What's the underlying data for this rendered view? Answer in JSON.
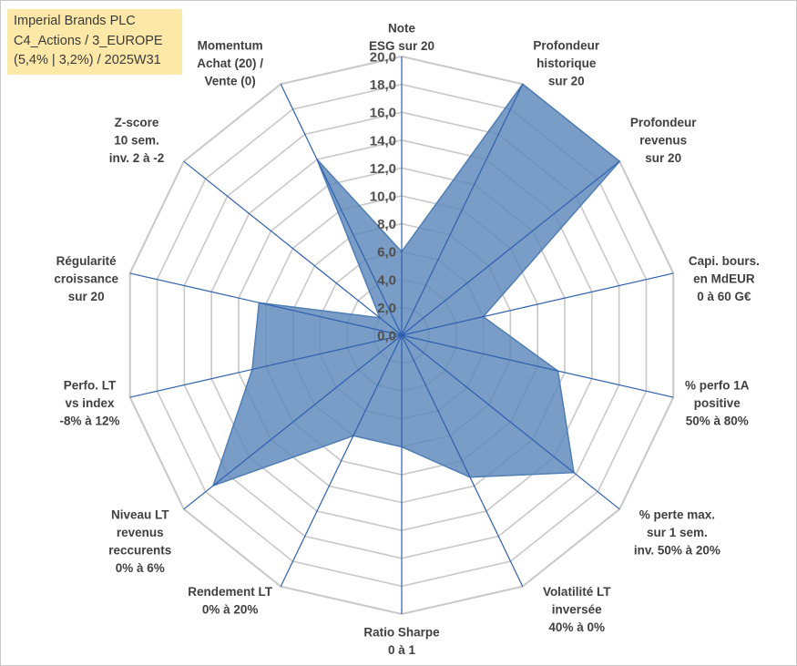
{
  "title_box": {
    "line1": "Imperial Brands PLC",
    "line2": "C4_Actions / 3_EUROPE",
    "line3": "(5,4% | 3,2%) / 2025W31"
  },
  "colors": {
    "fill": "#5b87b9",
    "stroke": "#4f7eb5",
    "spoke": "#2f5fb0",
    "ring": "#c8c8c8",
    "background_box": "#fde8a8"
  },
  "chart_data": {
    "type": "radar",
    "title": "",
    "range": [
      0,
      20
    ],
    "ticks": [
      "0,0",
      "2,0",
      "4,0",
      "6,0",
      "8,0",
      "10,0",
      "12,0",
      "14,0",
      "16,0",
      "18,0",
      "20,0"
    ],
    "axes": [
      {
        "label": [
          "Note",
          "ESG sur 20"
        ]
      },
      {
        "label": [
          "Profondeur",
          "historique",
          "sur 20"
        ]
      },
      {
        "label": [
          "Profondeur",
          "revenus",
          "sur 20"
        ]
      },
      {
        "label": [
          "Capi. bours.",
          "en MdEUR",
          "0 à 60 G€"
        ]
      },
      {
        "label": [
          "% perfo 1A",
          "positive",
          "50% à 80%"
        ]
      },
      {
        "label": [
          "% perte max.",
          "sur 1 sem.",
          "inv. 50% à 20%"
        ]
      },
      {
        "label": [
          "Volatilité LT",
          "inversée",
          "40% à 0%"
        ]
      },
      {
        "label": [
          "Ratio Sharpe",
          "0 à 1"
        ]
      },
      {
        "label": [
          "Rendement LT",
          "0% à 20%"
        ]
      },
      {
        "label": [
          "Niveau LT",
          "revenus",
          "reccurents",
          "0% à 6%"
        ]
      },
      {
        "label": [
          "Perfo. LT",
          "vs index",
          "-8% à 12%"
        ]
      },
      {
        "label": [
          "Régularité",
          "croissance",
          "sur 20"
        ]
      },
      {
        "label": [
          "Z-score",
          "10 sem.",
          "inv. 2 à -2"
        ]
      },
      {
        "label": [
          "Momentum",
          "Achat (20) /",
          "Vente (0)"
        ]
      }
    ],
    "series": [
      {
        "values": [
          6.0,
          20.0,
          20.0,
          6.0,
          11.5,
          15.8,
          11.3,
          8.0,
          8.0,
          17.3,
          11.0,
          10.5,
          2.0,
          14.0
        ]
      }
    ]
  }
}
